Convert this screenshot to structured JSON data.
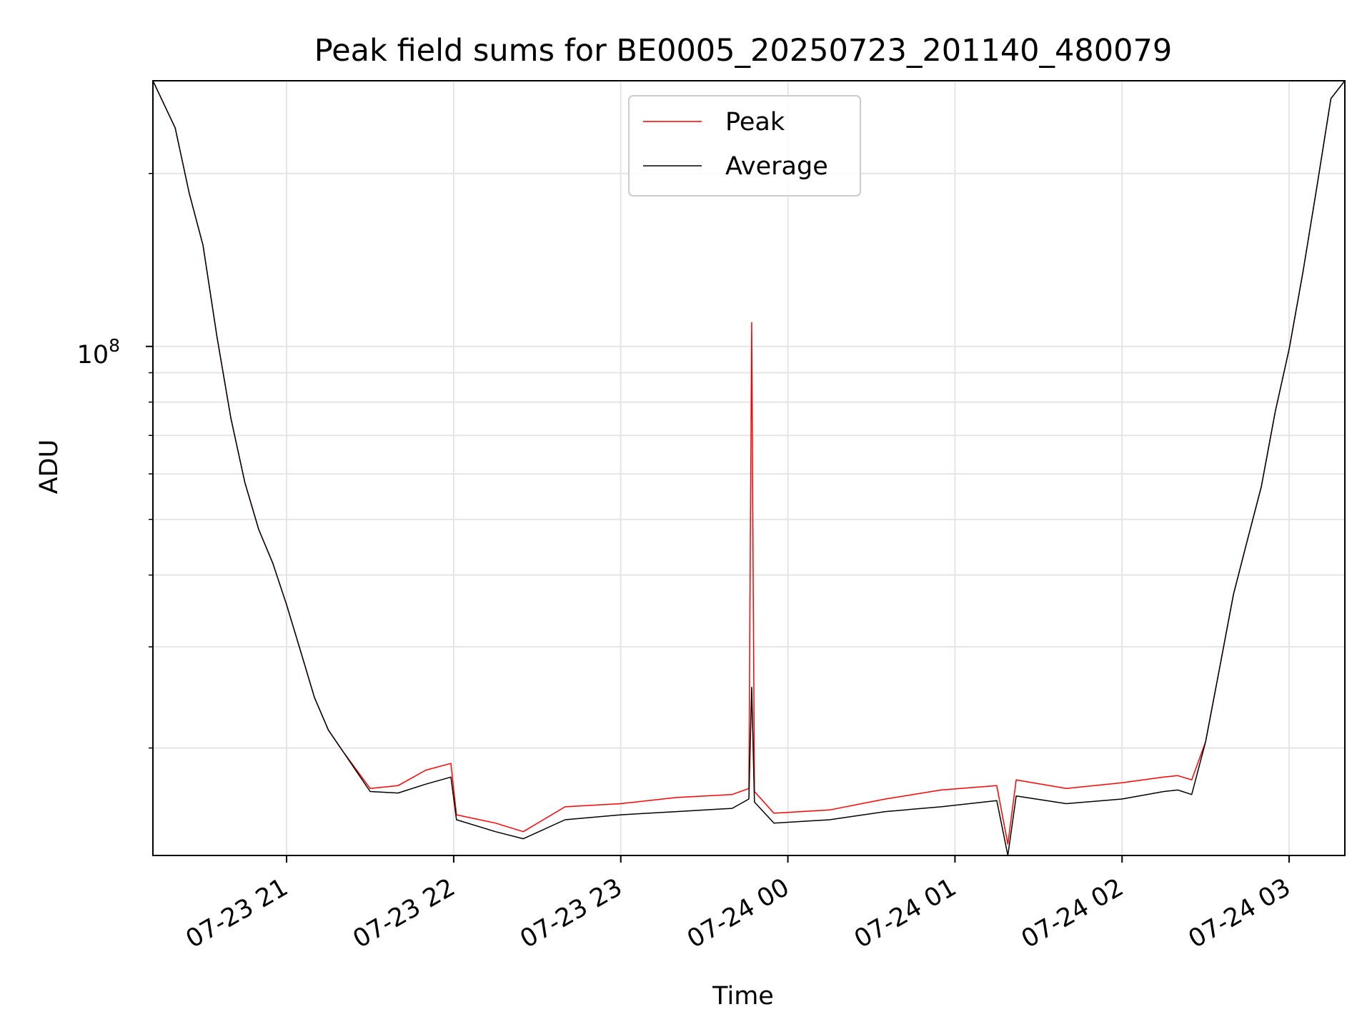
{
  "chart_data": {
    "type": "line",
    "title": "Peak field sums for BE0005_20250723_201140_480079",
    "xlabel": "Time",
    "ylabel": "ADU",
    "y_scale": "log",
    "y_tick_label": {
      "base": "10",
      "exponent": "8"
    },
    "x_tick_labels": [
      "07-23 21",
      "07-23 22",
      "07-23 23",
      "07-24 00",
      "07-24 01",
      "07-24 02",
      "07-24 03"
    ],
    "x_ticks": [
      "2025-07-23 21:00",
      "2025-07-23 22:00",
      "2025-07-23 23:00",
      "2025-07-24 00:00",
      "2025-07-24 01:00",
      "2025-07-24 02:00",
      "2025-07-24 03:00"
    ],
    "xlim": [
      "2025-07-23 20:12",
      "2025-07-24 03:20"
    ],
    "ylim": [
      13000000,
      290000000
    ],
    "grid": true,
    "legend_position": "upper-center",
    "colors": {
      "Peak": "#ff0000",
      "Average": "#000000"
    },
    "series": [
      {
        "name": "Peak",
        "x": [
          "2025-07-23 20:12",
          "2025-07-23 20:20",
          "2025-07-23 20:25",
          "2025-07-23 20:30",
          "2025-07-23 20:35",
          "2025-07-23 20:40",
          "2025-07-23 20:45",
          "2025-07-23 20:50",
          "2025-07-23 20:55",
          "2025-07-23 21:00",
          "2025-07-23 21:05",
          "2025-07-23 21:10",
          "2025-07-23 21:15",
          "2025-07-23 21:20",
          "2025-07-23 21:30",
          "2025-07-23 21:40",
          "2025-07-23 21:50",
          "2025-07-23 21:59",
          "2025-07-23 22:01",
          "2025-07-23 22:15",
          "2025-07-23 22:25",
          "2025-07-23 22:40",
          "2025-07-23 23:00",
          "2025-07-23 23:20",
          "2025-07-23 23:40",
          "2025-07-23 23:46",
          "2025-07-23 23:47",
          "2025-07-23 23:48",
          "2025-07-23 23:55",
          "2025-07-24 00:15",
          "2025-07-24 00:35",
          "2025-07-24 00:55",
          "2025-07-24 01:15",
          "2025-07-24 01:19",
          "2025-07-24 01:22",
          "2025-07-24 01:40",
          "2025-07-24 02:00",
          "2025-07-24 02:15",
          "2025-07-24 02:20",
          "2025-07-24 02:25",
          "2025-07-24 02:30",
          "2025-07-24 02:35",
          "2025-07-24 02:40",
          "2025-07-24 02:45",
          "2025-07-24 02:50",
          "2025-07-24 02:55",
          "2025-07-24 03:00",
          "2025-07-24 03:05",
          "2025-07-24 03:10",
          "2025-07-24 03:15",
          "2025-07-24 03:20"
        ],
        "y": [
          290000000,
          240000000,
          185000000,
          150000000,
          104000000,
          75000000,
          58000000,
          48000000,
          42000000,
          35500000,
          29500000,
          24500000,
          21500000,
          19800000,
          17000000,
          17200000,
          18300000,
          18800000,
          15300000,
          14800000,
          14300000,
          15800000,
          16000000,
          16400000,
          16600000,
          17000000,
          110000000,
          16800000,
          15400000,
          15600000,
          16300000,
          16900000,
          17200000,
          13600000,
          17600000,
          17000000,
          17400000,
          17800000,
          17900000,
          17600000,
          20500000,
          27500000,
          37000000,
          46000000,
          57000000,
          77000000,
          99000000,
          135000000,
          190000000,
          270000000,
          290000000
        ]
      },
      {
        "name": "Average",
        "x": [
          "2025-07-23 20:12",
          "2025-07-23 20:20",
          "2025-07-23 20:25",
          "2025-07-23 20:30",
          "2025-07-23 20:35",
          "2025-07-23 20:40",
          "2025-07-23 20:45",
          "2025-07-23 20:50",
          "2025-07-23 20:55",
          "2025-07-23 21:00",
          "2025-07-23 21:05",
          "2025-07-23 21:10",
          "2025-07-23 21:15",
          "2025-07-23 21:20",
          "2025-07-23 21:30",
          "2025-07-23 21:40",
          "2025-07-23 21:50",
          "2025-07-23 21:59",
          "2025-07-23 22:01",
          "2025-07-23 22:15",
          "2025-07-23 22:25",
          "2025-07-23 22:40",
          "2025-07-23 23:00",
          "2025-07-23 23:20",
          "2025-07-23 23:40",
          "2025-07-23 23:46",
          "2025-07-23 23:47",
          "2025-07-23 23:48",
          "2025-07-23 23:55",
          "2025-07-24 00:15",
          "2025-07-24 00:35",
          "2025-07-24 00:55",
          "2025-07-24 01:15",
          "2025-07-24 01:19",
          "2025-07-24 01:22",
          "2025-07-24 01:40",
          "2025-07-24 02:00",
          "2025-07-24 02:15",
          "2025-07-24 02:20",
          "2025-07-24 02:25",
          "2025-07-24 02:30",
          "2025-07-24 02:35",
          "2025-07-24 02:40",
          "2025-07-24 02:45",
          "2025-07-24 02:50",
          "2025-07-24 02:55",
          "2025-07-24 03:00",
          "2025-07-24 03:05",
          "2025-07-24 03:10",
          "2025-07-24 03:15",
          "2025-07-24 03:20"
        ],
        "y": [
          290000000,
          240000000,
          185000000,
          150000000,
          104000000,
          75000000,
          58000000,
          48000000,
          42000000,
          35500000,
          29500000,
          24500000,
          21500000,
          19800000,
          16800000,
          16700000,
          17300000,
          17800000,
          15000000,
          14300000,
          13900000,
          15000000,
          15300000,
          15500000,
          15700000,
          16300000,
          25500000,
          16100000,
          14800000,
          15000000,
          15500000,
          15800000,
          16200000,
          13000000,
          16500000,
          16000000,
          16300000,
          16800000,
          16900000,
          16600000,
          20500000,
          27500000,
          37000000,
          46000000,
          57000000,
          77000000,
          99000000,
          135000000,
          190000000,
          270000000,
          290000000
        ]
      }
    ]
  }
}
